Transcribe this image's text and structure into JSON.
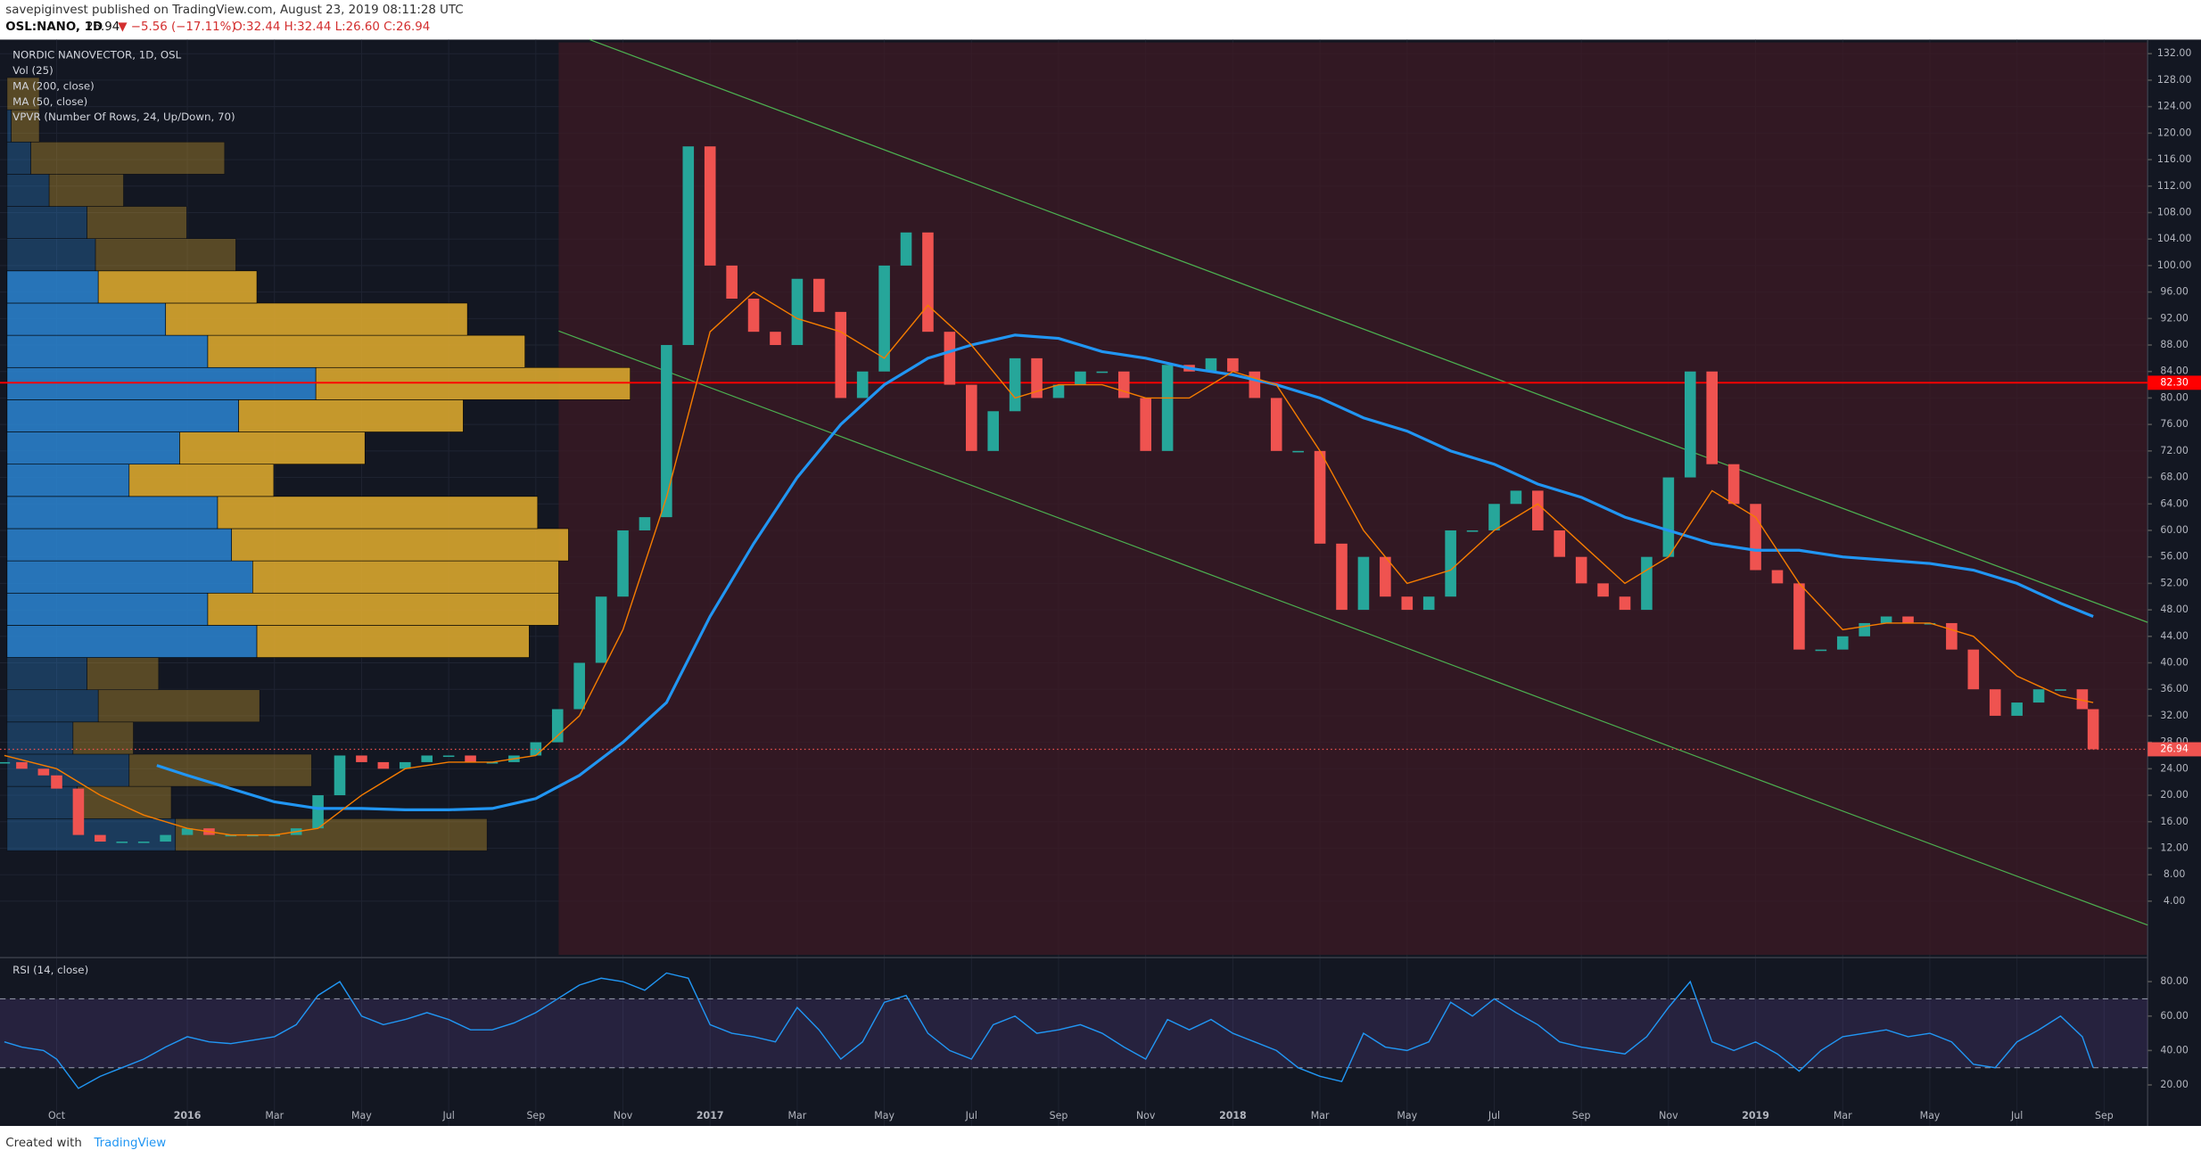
{
  "header": {
    "byline": "savepiginvest published on TradingView.com, August 23, 2019 08:11:28 UTC",
    "symbol": "OSL:NANO, 1D",
    "last": "26.94",
    "change": "▼ −5.56 (−17.11%)",
    "ohlc": "O:32.44 H:32.44 L:26.60 C:26.94"
  },
  "footer": {
    "created": "Created with",
    "brand": "TradingView"
  },
  "chart_data": [
    {
      "type": "candle",
      "indicators": [
        "Vol (25)",
        "VPVR (Number Of Rows, 24, Up/Down, 70)"
      ],
      "xlim": [
        -1.3,
        48
      ],
      "xticks": [
        {
          "value": 0,
          "label": "Oct"
        },
        {
          "value": 3,
          "label": "2016"
        },
        {
          "value": 5,
          "label": "Mar"
        },
        {
          "value": 7,
          "label": "May"
        },
        {
          "value": 9,
          "label": "Jul"
        },
        {
          "value": 11,
          "label": "Sep"
        },
        {
          "value": 13,
          "label": "Nov"
        },
        {
          "value": 15,
          "label": "2017"
        },
        {
          "value": 17,
          "label": "Mar"
        },
        {
          "value": 19,
          "label": "May"
        },
        {
          "value": 21,
          "label": "Jul"
        },
        {
          "value": 23,
          "label": "Sep"
        },
        {
          "value": 25,
          "label": "Nov"
        },
        {
          "value": 27,
          "label": "2018"
        },
        {
          "value": 29,
          "label": "Mar"
        },
        {
          "value": 31,
          "label": "May"
        },
        {
          "value": 33,
          "label": "Jul"
        },
        {
          "value": 35,
          "label": "Sep"
        },
        {
          "value": 37,
          "label": "Nov"
        },
        {
          "value": 39,
          "label": "2019"
        },
        {
          "value": 41,
          "label": "Mar"
        },
        {
          "value": 43,
          "label": "May"
        },
        {
          "value": 45,
          "label": "Jul"
        },
        {
          "value": 47,
          "label": "Sep"
        }
      ],
      "ylim": [
        -4.1,
        133.7
      ],
      "yticks": [
        {
          "value": 4,
          "label": "4.00"
        },
        {
          "value": 8,
          "label": "8.00"
        },
        {
          "value": 12,
          "label": "12.00"
        },
        {
          "value": 16,
          "label": "16.00"
        },
        {
          "value": 20,
          "label": "20.00"
        },
        {
          "value": 24,
          "label": "24.00"
        },
        {
          "value": 28,
          "label": "28.00"
        },
        {
          "value": 32,
          "label": "32.00"
        },
        {
          "value": 36,
          "label": "36.00"
        },
        {
          "value": 40,
          "label": "40.00"
        },
        {
          "value": 44,
          "label": "44.00"
        },
        {
          "value": 48,
          "label": "48.00"
        },
        {
          "value": 52,
          "label": "52.00"
        },
        {
          "value": 56,
          "label": "56.00"
        },
        {
          "value": 60,
          "label": "60.00"
        },
        {
          "value": 64,
          "label": "64.00"
        },
        {
          "value": 68,
          "label": "68.00"
        },
        {
          "value": 72,
          "label": "72.00"
        },
        {
          "value": 76,
          "label": "76.00"
        },
        {
          "value": 80,
          "label": "80.00"
        },
        {
          "value": 84,
          "label": "84.00"
        },
        {
          "value": 88,
          "label": "88.00"
        },
        {
          "value": 92,
          "label": "92.00"
        },
        {
          "value": 96,
          "label": "96.00"
        },
        {
          "value": 100,
          "label": "100.00"
        },
        {
          "value": 104,
          "label": "104.00"
        },
        {
          "value": 108,
          "label": "108.00"
        },
        {
          "value": 112,
          "label": "112.00"
        },
        {
          "value": 116,
          "label": "116.00"
        },
        {
          "value": 120,
          "label": "120.00"
        },
        {
          "value": 124,
          "label": "124.00"
        },
        {
          "value": 128,
          "label": "128.00"
        },
        {
          "value": 132,
          "label": "132.00"
        }
      ],
      "hline": {
        "value": 82.3,
        "label": "82.30",
        "color": "#ff0000"
      },
      "series": [
        {
          "name": "NORDIC NANOVECTOR, 1D, OSL",
          "up_color": "#26a69a",
          "down_color": "#ef5350",
          "x": [
            -1.2,
            -0.8,
            -0.3,
            0,
            0.5,
            1,
            1.5,
            2,
            2.5,
            3,
            3.5,
            4,
            4.5,
            5,
            5.5,
            6,
            6.5,
            7,
            7.5,
            8,
            8.5,
            9,
            9.5,
            10,
            10.5,
            11,
            11.5,
            12,
            12.5,
            13,
            13.5,
            14,
            14.5,
            15,
            15.5,
            16,
            16.5,
            17,
            17.5,
            18,
            18.5,
            19,
            19.5,
            20,
            20.5,
            21,
            21.5,
            22,
            22.5,
            23,
            23.5,
            24,
            24.5,
            25,
            25.5,
            26,
            26.5,
            27,
            27.5,
            28,
            28.5,
            29,
            29.5,
            30,
            30.5,
            31,
            31.5,
            32,
            32.5,
            33,
            33.5,
            34,
            34.5,
            35,
            35.5,
            36,
            36.5,
            37,
            37.5,
            38,
            38.5,
            39,
            39.5,
            40,
            40.5,
            41,
            41.5,
            42,
            42.5,
            43,
            43.5,
            44,
            44.5,
            45,
            45.5,
            46,
            46.5,
            46.75
          ],
          "values": [
            25,
            24,
            23,
            21,
            14,
            13,
            13,
            13,
            14,
            15,
            14,
            14,
            14,
            14,
            15,
            20,
            26,
            25,
            24,
            25,
            26,
            26,
            25,
            25,
            26,
            28,
            33,
            40,
            50,
            60,
            62,
            88,
            118,
            100,
            95,
            90,
            88,
            98,
            93,
            80,
            84,
            100,
            105,
            90,
            82,
            72,
            78,
            86,
            80,
            82,
            84,
            84,
            80,
            72,
            85,
            84,
            86,
            84,
            80,
            72,
            72,
            58,
            48,
            56,
            50,
            48,
            50,
            60,
            60,
            64,
            66,
            60,
            56,
            52,
            50,
            48,
            56,
            68,
            84,
            70,
            64,
            54,
            52,
            42,
            42,
            44,
            46,
            47,
            46,
            46,
            42,
            36,
            32,
            34,
            36,
            36,
            33,
            26.94
          ]
        },
        {
          "name": "MA (200, close)",
          "color": "#2196f3",
          "x": [
            2.3,
            3,
            4,
            5,
            6,
            7,
            8,
            9,
            10,
            11,
            12,
            13,
            14,
            15,
            16,
            17,
            18,
            19,
            20,
            21,
            22,
            23,
            24,
            25,
            26,
            27,
            28,
            29,
            30,
            31,
            32,
            33,
            34,
            35,
            36,
            37,
            38,
            39,
            40,
            41,
            42,
            43,
            44,
            45,
            46,
            46.75
          ],
          "values": [
            24.5,
            23,
            21,
            19,
            18,
            18,
            17.8,
            17.8,
            18,
            19.5,
            23,
            28,
            34,
            47,
            58,
            68,
            76,
            82,
            86,
            88,
            89.5,
            89,
            87,
            86,
            84.5,
            83.5,
            82,
            80,
            77,
            75,
            72,
            70,
            67,
            65,
            62,
            60,
            58,
            57,
            57,
            56,
            55.5,
            55,
            54,
            52,
            49,
            47
          ]
        },
        {
          "name": "MA (50, close)",
          "color": "#f57c00",
          "x": [
            -1.2,
            0,
            1,
            2,
            3,
            4,
            5,
            6,
            7,
            8,
            9,
            10,
            11,
            12,
            13,
            14,
            15,
            16,
            17,
            18,
            19,
            20,
            21,
            22,
            23,
            24,
            25,
            26,
            27,
            28,
            29,
            30,
            31,
            32,
            33,
            34,
            35,
            36,
            37,
            38,
            39,
            40,
            41,
            42,
            43,
            44,
            45,
            46,
            46.75
          ],
          "values": [
            26,
            24,
            20,
            17,
            15,
            14,
            14,
            15,
            20,
            24,
            25,
            25,
            26,
            32,
            45,
            65,
            90,
            96,
            92,
            90,
            86,
            94,
            88,
            80,
            82,
            82,
            80,
            80,
            84,
            82,
            72,
            60,
            52,
            54,
            60,
            64,
            58,
            52,
            56,
            66,
            62,
            52,
            45,
            46,
            46,
            44,
            38,
            35,
            34
          ]
        }
      ],
      "volume_profile": {
        "price_range": [
          11.6,
          128.4
        ],
        "up_color": "#2a7fc9",
        "down_color": "#d9a62e",
        "up": [
          120,
          50,
          87,
          47,
          65,
          57,
          178,
          143,
          175,
          160,
          150,
          87,
          123,
          165,
          220,
          143,
          113,
          65,
          63,
          57,
          30,
          17,
          3,
          0
        ],
        "down": [
          222,
          67,
          130,
          43,
          115,
          51,
          194,
          250,
          218,
          240,
          228,
          103,
          132,
          160,
          224,
          226,
          215,
          113,
          100,
          71,
          53,
          138,
          20,
          23
        ]
      }
    },
    {
      "type": "line",
      "title": "RSI (14, close)",
      "ylim": [
        1.1,
        92.3
      ],
      "yticks": [
        {
          "value": 20,
          "label": "20.00"
        },
        {
          "value": 40,
          "label": "40.00"
        },
        {
          "value": 60,
          "label": "60.00"
        },
        {
          "value": 80,
          "label": "80.00"
        }
      ],
      "bands": [
        30,
        70
      ],
      "series": [
        {
          "color": "#2196f3",
          "values": [
            45,
            42,
            40,
            35,
            18,
            25,
            30,
            35,
            42,
            48,
            45,
            44,
            46,
            48,
            55,
            72,
            80,
            60,
            55,
            58,
            62,
            58,
            52,
            52,
            56,
            62,
            70,
            78,
            82,
            80,
            75,
            85,
            82,
            55,
            50,
            48,
            45,
            65,
            52,
            35,
            45,
            68,
            72,
            50,
            40,
            35,
            55,
            60,
            50,
            52,
            55,
            50,
            42,
            35,
            58,
            52,
            58,
            50,
            45,
            40,
            30,
            25,
            22,
            50,
            42,
            40,
            45,
            68,
            60,
            70,
            62,
            55,
            45,
            42,
            40,
            38,
            48,
            65,
            80,
            45,
            40,
            45,
            38,
            28,
            40,
            48,
            50,
            52,
            48,
            50,
            45,
            32,
            30,
            45,
            52,
            60,
            48,
            30
          ]
        }
      ]
    }
  ]
}
